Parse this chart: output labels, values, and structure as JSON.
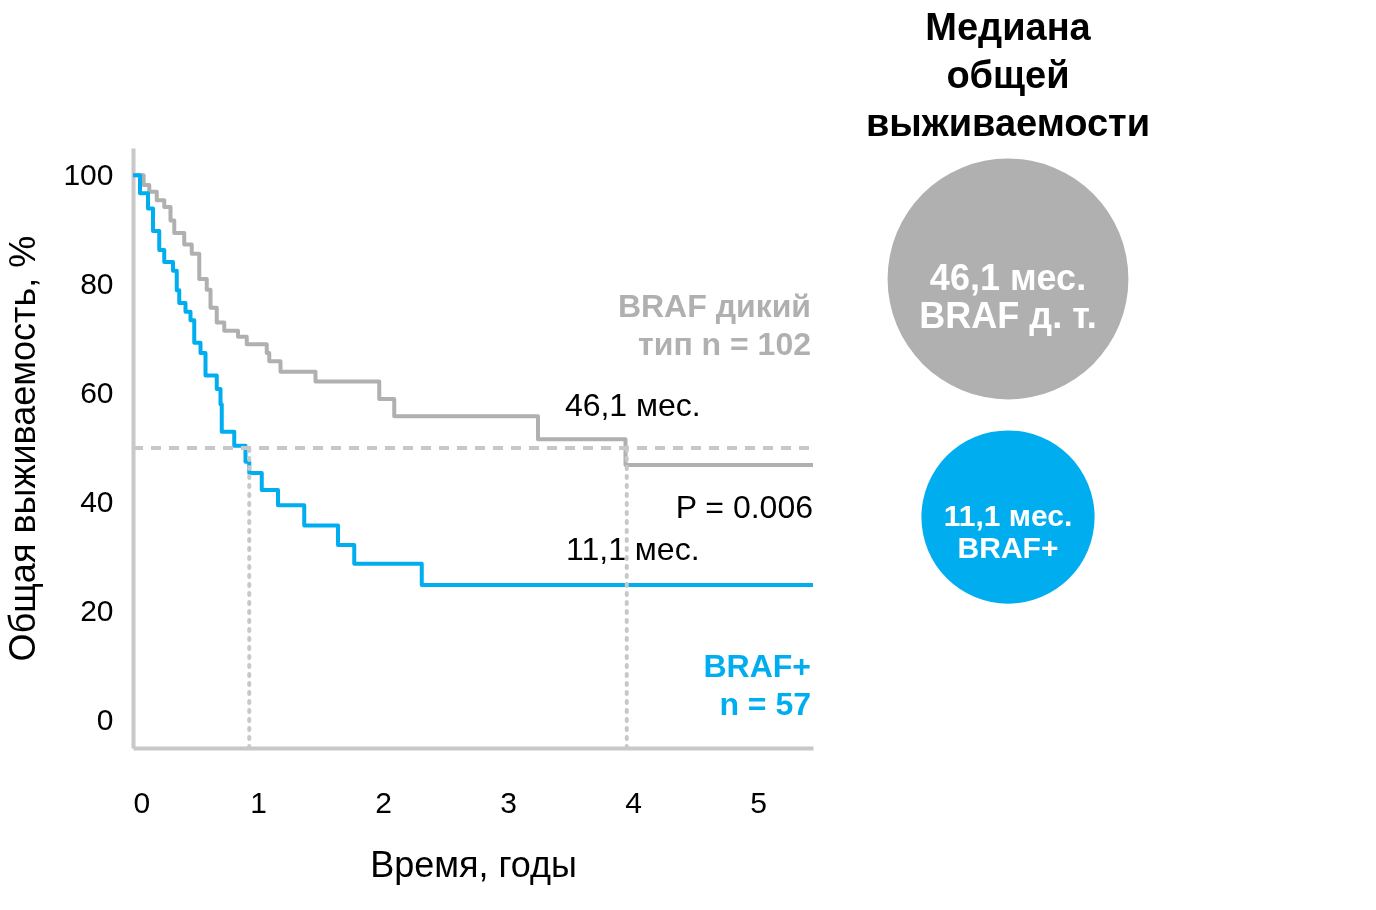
{
  "chart_data": [
    {
      "type": "step",
      "xlabel": "Время, годы",
      "ylabel": "Общая выживаемость, %",
      "xlim": [
        0,
        5.44
      ],
      "xticks": [
        0,
        1,
        2,
        3,
        4,
        5
      ],
      "ylim": [
        -5,
        105
      ],
      "yticks": [
        0,
        20,
        40,
        60,
        80,
        100
      ],
      "grid": false,
      "legend": false,
      "marker": "none",
      "line_style": "solid",
      "series": [
        {
          "name": "BRAF дикий\nтип  n = 102",
          "color": "#b0b0b0",
          "x": [
            0,
            0.085,
            0.13,
            0.19,
            0.25,
            0.3,
            0.33,
            0.41,
            0.47,
            0.53,
            0.59,
            0.62,
            0.67,
            0.73,
            0.84,
            0.91,
            1.07,
            1.09,
            1.18,
            1.46,
            1.97,
            2.09,
            3.24,
            3.94,
            5.44
          ],
          "values": [
            100,
            98.2,
            97,
            95.4,
            94.2,
            91.7,
            89.4,
            87.3,
            85.6,
            81,
            79,
            75.7,
            73,
            71.5,
            70.4,
            69,
            67.4,
            65.9,
            64,
            62.2,
            59,
            55.8,
            51.6,
            46.9,
            46.9
          ]
        },
        {
          "name": "BRAF+\nn = 57",
          "color": "#00aeef",
          "x": [
            0,
            0.056,
            0.12,
            0.16,
            0.21,
            0.25,
            0.32,
            0.35,
            0.37,
            0.42,
            0.46,
            0.49,
            0.54,
            0.58,
            0.67,
            0.7,
            0.71,
            0.81,
            0.9,
            0.93,
            1.03,
            1.16,
            1.37,
            1.64,
            1.77,
            2.31,
            5.44
          ],
          "values": [
            100,
            96.7,
            93.9,
            89.8,
            86.3,
            84.1,
            82.5,
            78.9,
            76.6,
            75,
            73.4,
            69.3,
            67.4,
            63.3,
            60.8,
            58,
            53,
            50.4,
            47.5,
            45.4,
            42.3,
            39.5,
            35.8,
            32.2,
            28.8,
            24.9,
            24.9
          ]
        }
      ],
      "ref_lines": [
        {
          "axis": "y",
          "value": 50,
          "color": "#c8c8c8",
          "line_style": "dashed"
        },
        {
          "axis": "x",
          "value": 0.93,
          "color": "#c8c8c8",
          "line_style": "dotted"
        },
        {
          "axis": "x",
          "value": 3.95,
          "color": "#c8c8c8",
          "line_style": "dotted"
        }
      ],
      "annotations": [
        "46,1 мес.",
        "11,1 мес.",
        "P = 0.006"
      ]
    },
    {
      "type": "other",
      "title": "Медиана общей выживаемости",
      "annotations": [
        "46,1 мес.\nBRAF д. т.",
        "11,1 мес.\nBRAF+"
      ],
      "colors": [
        "#b0b0b0",
        "#00aeef"
      ]
    }
  ]
}
